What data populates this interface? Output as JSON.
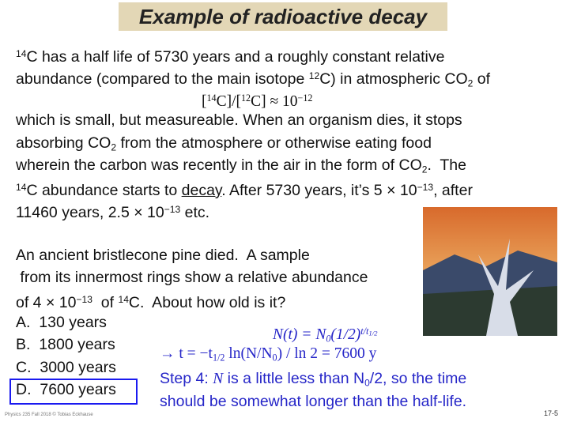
{
  "title": "Example of radioactive decay",
  "text_lines": [
    [
      "14",
      "C has a half life of 5730 years and a roughly constant relative"
    ],
    [
      "abundance (compared to the main isotope ",
      "12",
      "C) in atmospheric CO",
      "2",
      " of"
    ],
    [
      "[",
      "14",
      "C]/[",
      "12",
      "C] ≈ 10",
      "−12"
    ],
    [
      "which is small, but measureable. When an organism dies, it stops"
    ],
    [
      "absorbing CO",
      "2",
      " from the atmosphere or otherwise eating food"
    ],
    [
      "wherein the carbon was recently in the air in the form of CO",
      "2",
      ".  The"
    ],
    [
      "14",
      "C abundance starts to ",
      "decay",
      ". After 5730 years, it’s 5 × 10",
      "−13",
      ", after"
    ],
    [
      "11460 years, 2.5 × 10",
      "−13",
      " etc."
    ]
  ],
  "question_lines": [
    [
      "An ancient bristlecone pine died.  A sample"
    ],
    [
      " from its innermost rings show a relative abundance"
    ],
    [
      "of 4 × 10",
      "−13",
      "  of ",
      "14",
      "C.  About how old is it?"
    ]
  ],
  "options": [
    {
      "letter": "A.",
      "text": "130 years"
    },
    {
      "letter": "B.",
      "text": "1800 years"
    },
    {
      "letter": "C.",
      "text": "3000 years"
    },
    {
      "letter": "D.",
      "text": "7600 years"
    }
  ],
  "answer_lines": [
    [
      "N(t) = N",
      "0",
      "(1/2)",
      "t/t",
      "1/2"
    ],
    [
      "→ t = −t",
      "1/2",
      " ln(N/N",
      "0",
      ") / ln 2 = 7600 y"
    ],
    [
      "Step 4: ",
      "N",
      " is a little less than N",
      "0",
      "/2, so the time"
    ],
    [
      "should be somewhat longer than the half-life."
    ]
  ],
  "footer": {
    "left": "Physics 235 Fall 2018 © Tobias Eckhause",
    "right": "17-5"
  }
}
